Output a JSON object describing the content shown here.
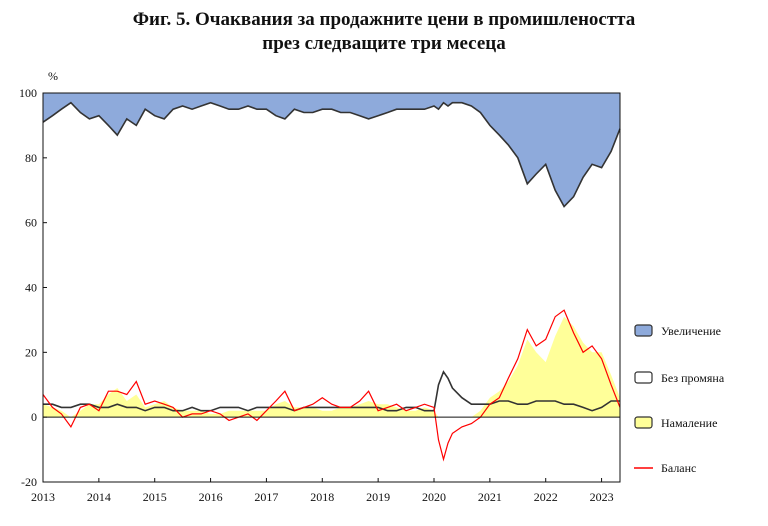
{
  "title_line1": "Фиг. 5. Очаквания за продажните цени в промишлеността",
  "title_line2": "през следващите три месеца",
  "chart_data": {
    "type": "area",
    "ylabel": "%",
    "ylim": [
      -20,
      100
    ],
    "yticks": [
      -20,
      0,
      20,
      40,
      60,
      80,
      100
    ],
    "xlim": [
      2013,
      2023.33
    ],
    "xticks": [
      "2013",
      "2014",
      "2015",
      "2016",
      "2017",
      "2018",
      "2019",
      "2020",
      "2021",
      "2022",
      "2023"
    ],
    "grid": false,
    "legend_position": "right",
    "x": [
      2013.0,
      2013.17,
      2013.33,
      2013.5,
      2013.67,
      2013.83,
      2014.0,
      2014.17,
      2014.33,
      2014.5,
      2014.67,
      2014.83,
      2015.0,
      2015.17,
      2015.33,
      2015.5,
      2015.67,
      2015.83,
      2016.0,
      2016.17,
      2016.33,
      2016.5,
      2016.67,
      2016.83,
      2017.0,
      2017.17,
      2017.33,
      2017.5,
      2017.67,
      2017.83,
      2018.0,
      2018.17,
      2018.33,
      2018.5,
      2018.67,
      2018.83,
      2019.0,
      2019.17,
      2019.33,
      2019.5,
      2019.67,
      2019.83,
      2020.0,
      2020.08,
      2020.17,
      2020.25,
      2020.33,
      2020.5,
      2020.67,
      2020.83,
      2021.0,
      2021.17,
      2021.33,
      2021.5,
      2021.67,
      2021.83,
      2022.0,
      2022.17,
      2022.33,
      2022.5,
      2022.67,
      2022.83,
      2023.0,
      2023.17,
      2023.33
    ],
    "series": [
      {
        "name": "Увеличение",
        "color": "#8eaadb",
        "values": [
          91,
          93,
          95,
          97,
          94,
          92,
          93,
          90,
          87,
          92,
          90,
          95,
          93,
          92,
          95,
          96,
          95,
          96,
          97,
          96,
          95,
          95,
          96,
          95,
          95,
          93,
          92,
          95,
          94,
          94,
          95,
          95,
          94,
          94,
          93,
          92,
          93,
          94,
          95,
          95,
          95,
          95,
          96,
          95,
          97,
          96,
          97,
          97,
          96,
          94,
          90,
          87,
          84,
          80,
          72,
          75,
          78,
          70,
          65,
          68,
          74,
          78,
          77,
          82,
          89
        ]
      },
      {
        "name": "Без промяна",
        "color": "#ffffff",
        "values": [
          4,
          4,
          3,
          3,
          4,
          4,
          3,
          3,
          4,
          3,
          3,
          2,
          3,
          3,
          2,
          2,
          3,
          2,
          2,
          3,
          3,
          3,
          2,
          3,
          3,
          3,
          3,
          2,
          3,
          3,
          3,
          3,
          3,
          3,
          3,
          3,
          3,
          2,
          2,
          3,
          3,
          2,
          2,
          10,
          14,
          12,
          9,
          6,
          4,
          4,
          4,
          5,
          5,
          4,
          4,
          5,
          5,
          5,
          4,
          4,
          3,
          2,
          3,
          5,
          5
        ]
      },
      {
        "name": "Намаление",
        "color": "#ffff99",
        "values": [
          4,
          3,
          2,
          0,
          2,
          4,
          4,
          7,
          9,
          5,
          7,
          3,
          4,
          5,
          3,
          2,
          2,
          2,
          1,
          1,
          2,
          2,
          2,
          2,
          2,
          4,
          5,
          3,
          3,
          3,
          2,
          2,
          3,
          3,
          4,
          5,
          4,
          4,
          3,
          2,
          2,
          3,
          2,
          0,
          0,
          0,
          0,
          0,
          0,
          2,
          6,
          8,
          11,
          16,
          24,
          20,
          17,
          25,
          31,
          28,
          23,
          20,
          20,
          13,
          6
        ]
      },
      {
        "name": "Баланс",
        "color": "#ff0000",
        "values": [
          7,
          3,
          1,
          -3,
          3,
          4,
          2,
          8,
          8,
          7,
          11,
          4,
          5,
          4,
          3,
          0,
          1,
          1,
          2,
          1,
          -1,
          0,
          1,
          -1,
          2,
          5,
          8,
          2,
          3,
          4,
          6,
          4,
          3,
          3,
          5,
          8,
          2,
          3,
          4,
          2,
          3,
          4,
          3,
          -7,
          -13,
          -8,
          -5,
          -3,
          -2,
          0,
          4,
          6,
          12,
          18,
          27,
          22,
          24,
          31,
          33,
          26,
          20,
          22,
          18,
          10,
          3
        ]
      }
    ]
  }
}
